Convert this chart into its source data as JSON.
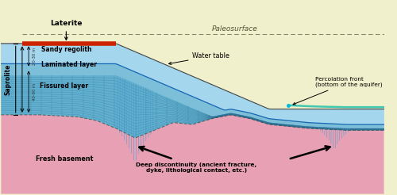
{
  "bg_color": "#f0f0cc",
  "colors": {
    "laterite": "#cc2200",
    "sandy_regolith": "#a8d8f0",
    "laminated": "#7bbcd8",
    "fissured": "#5aaccc",
    "fresh_basement": "#e8a0b0",
    "pink_deep": "#e8a0b4",
    "fracture_blue": "#4488bb",
    "percolation": "#40c8b0",
    "grid_line": "#2a6a90",
    "paleosurface_line": "#888866",
    "outline": "#444444",
    "water_line": "#0055aa"
  },
  "annotations": {
    "laterite": "Laterite",
    "paleosurface": "Paleosurface",
    "saprolite": "Saprolite",
    "sandy": "Sandy regolith",
    "laminated": "Laminated layer",
    "fissured": "Fissured layer",
    "fresh": "Fresh basement",
    "water_table": "Water table",
    "percolation": "Percolation front\n(bottom of the aquifer)",
    "deep_disc": "Deep discontinuity (ancient fracture,\ndyke, lithological contact, etc.)"
  }
}
